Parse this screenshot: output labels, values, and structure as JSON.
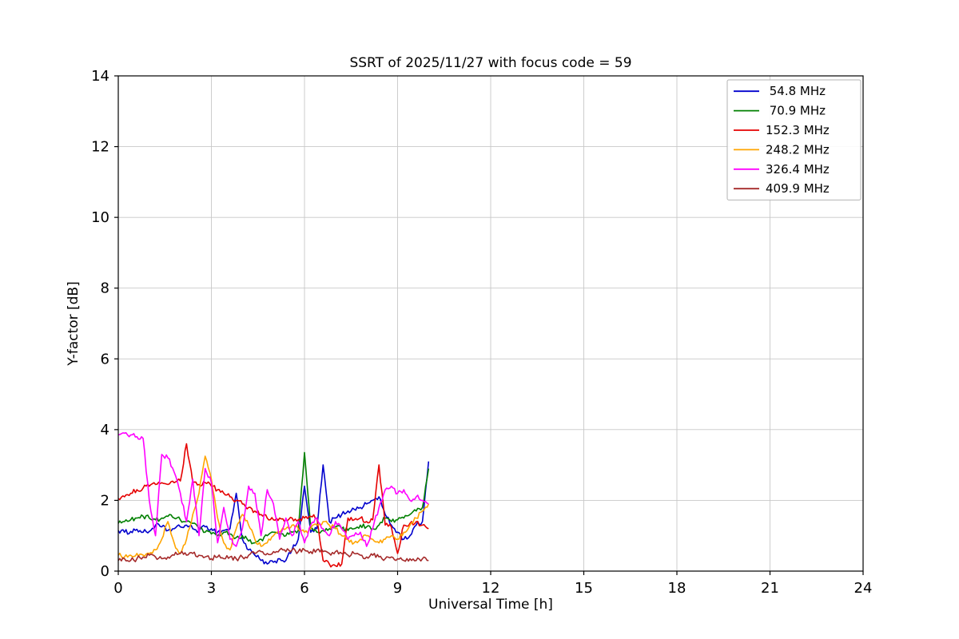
{
  "figure": {
    "background": "#ffffff"
  },
  "chart_data": {
    "type": "line",
    "title": "SSRT of 2025/11/27 with focus code = 59",
    "xlabel": "Universal Time [h]",
    "ylabel": "Y-factor [dB]",
    "xlim": [
      0,
      24
    ],
    "ylim": [
      0,
      14
    ],
    "xticks": [
      0,
      3,
      6,
      9,
      12,
      15,
      18,
      21,
      24
    ],
    "yticks": [
      0,
      2,
      4,
      6,
      8,
      10,
      12,
      14
    ],
    "grid": true,
    "grid_color": "#c8c8c8",
    "axis_color": "#000000",
    "legend_position": "upper right",
    "x_start": 0,
    "x_step": 0.2,
    "series": [
      {
        "name": "54.8 MHz",
        "legend_label": " 54.8 MHz",
        "color": "#0000cd",
        "values": [
          1.15,
          1.1,
          1.12,
          1.18,
          1.1,
          1.12,
          1.3,
          1.25,
          1.15,
          1.2,
          1.25,
          1.3,
          1.2,
          1.15,
          1.25,
          1.2,
          1.1,
          1.15,
          1.2,
          2.2,
          0.9,
          0.6,
          0.45,
          0.3,
          0.2,
          0.25,
          0.35,
          0.3,
          0.6,
          0.9,
          2.4,
          1.1,
          1.2,
          3.0,
          1.4,
          1.5,
          1.6,
          1.7,
          1.75,
          1.8,
          1.9,
          2.0,
          2.1,
          1.6,
          1.3,
          1.1,
          0.9,
          1.0,
          1.3,
          1.4,
          3.1
        ]
      },
      {
        "name": "70.9 MHz",
        "legend_label": " 70.9 MHz",
        "color": "#008000",
        "values": [
          1.35,
          1.4,
          1.45,
          1.5,
          1.55,
          1.5,
          1.45,
          1.5,
          1.55,
          1.5,
          1.45,
          1.4,
          1.35,
          1.2,
          1.1,
          1.05,
          1.0,
          1.1,
          1.05,
          0.95,
          1.0,
          0.85,
          0.8,
          0.9,
          1.0,
          1.1,
          1.05,
          1.0,
          1.1,
          1.15,
          3.35,
          1.2,
          1.1,
          1.15,
          1.2,
          1.25,
          1.2,
          1.15,
          1.2,
          1.3,
          1.25,
          1.2,
          1.3,
          1.5,
          1.4,
          1.45,
          1.5,
          1.6,
          1.7,
          1.8,
          2.9
        ]
      },
      {
        "name": "152.3 MHz",
        "legend_label": "152.3 MHz",
        "color": "#e50000",
        "values": [
          2.05,
          2.1,
          2.2,
          2.3,
          2.35,
          2.4,
          2.45,
          2.5,
          2.45,
          2.5,
          2.55,
          3.6,
          2.5,
          2.45,
          2.5,
          2.4,
          2.3,
          2.2,
          2.1,
          2.0,
          1.9,
          1.8,
          1.7,
          1.6,
          1.5,
          1.45,
          1.5,
          1.45,
          1.5,
          1.45,
          1.5,
          1.55,
          1.5,
          0.3,
          0.2,
          0.15,
          0.2,
          1.5,
          1.45,
          1.5,
          1.4,
          1.45,
          3.0,
          1.3,
          1.25,
          0.5,
          1.3,
          1.35,
          1.4,
          1.3,
          1.2
        ]
      },
      {
        "name": "248.2 MHz",
        "legend_label": "248.2 MHz",
        "color": "#ffa500",
        "values": [
          0.45,
          0.4,
          0.45,
          0.5,
          0.45,
          0.5,
          0.6,
          0.9,
          1.4,
          0.8,
          0.5,
          0.9,
          1.6,
          2.2,
          3.25,
          2.6,
          1.5,
          0.8,
          0.6,
          1.2,
          1.6,
          1.3,
          0.9,
          0.7,
          0.8,
          1.0,
          1.1,
          1.2,
          1.3,
          1.2,
          1.1,
          1.2,
          1.3,
          1.4,
          1.3,
          1.2,
          1.0,
          0.9,
          0.8,
          0.9,
          1.0,
          0.9,
          0.8,
          0.9,
          1.0,
          0.9,
          1.1,
          1.3,
          1.5,
          1.7,
          1.9
        ]
      },
      {
        "name": "326.4 MHz",
        "legend_label": "326.4 MHz",
        "color": "#ff00ff",
        "values": [
          3.85,
          3.9,
          3.85,
          3.8,
          3.75,
          2.0,
          1.0,
          3.3,
          3.2,
          2.8,
          2.2,
          1.4,
          2.6,
          1.0,
          2.9,
          2.5,
          0.8,
          1.8,
          0.9,
          0.7,
          1.2,
          2.4,
          2.2,
          1.0,
          2.3,
          1.9,
          0.9,
          1.5,
          1.0,
          1.4,
          0.8,
          1.3,
          1.5,
          1.2,
          1.0,
          1.4,
          1.2,
          0.9,
          1.0,
          1.1,
          0.7,
          1.2,
          1.8,
          2.3,
          2.4,
          2.2,
          2.3,
          2.0,
          2.1,
          2.0,
          1.9
        ]
      },
      {
        "name": "409.9 MHz",
        "legend_label": "409.9 MHz",
        "color": "#a52a2a",
        "values": [
          0.3,
          0.35,
          0.3,
          0.35,
          0.4,
          0.45,
          0.4,
          0.35,
          0.4,
          0.45,
          0.5,
          0.45,
          0.5,
          0.45,
          0.4,
          0.35,
          0.4,
          0.35,
          0.4,
          0.35,
          0.4,
          0.45,
          0.5,
          0.55,
          0.5,
          0.55,
          0.6,
          0.55,
          0.6,
          0.55,
          0.6,
          0.55,
          0.6,
          0.55,
          0.5,
          0.55,
          0.5,
          0.45,
          0.5,
          0.45,
          0.4,
          0.45,
          0.4,
          0.35,
          0.4,
          0.35,
          0.3,
          0.35,
          0.3,
          0.35,
          0.3
        ]
      }
    ]
  }
}
